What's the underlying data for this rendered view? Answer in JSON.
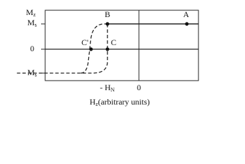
{
  "axis_labels": {
    "y": {
      "main": "M",
      "sub": "z"
    },
    "ms": {
      "main": "M",
      "sub": "s"
    },
    "zero_y": "0",
    "neg_ms": {
      "prefix": "- ",
      "main": "M",
      "sub": "s"
    },
    "neg_hn": {
      "prefix": "- ",
      "main": "H",
      "sub": "N"
    },
    "zero_x": "0",
    "x": {
      "main": "H",
      "sub": "z",
      "suffix": "(arbitrary units)"
    }
  },
  "points": {
    "a": "A",
    "b": "B",
    "c": "C",
    "c_prime": "C'"
  }
}
